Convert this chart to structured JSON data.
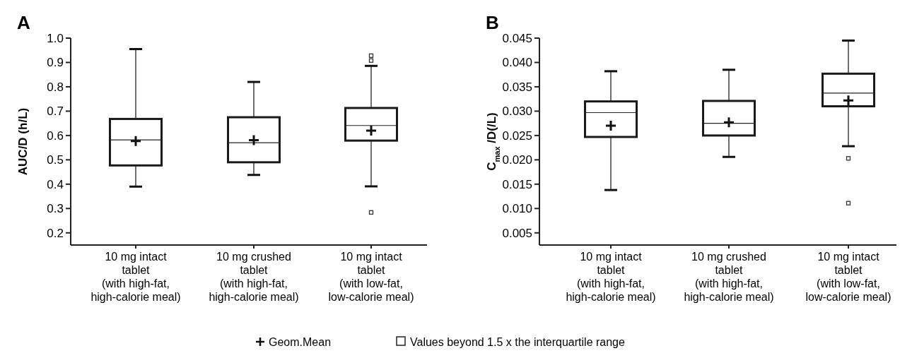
{
  "chart_data": [
    {
      "type": "box",
      "title": "A",
      "ylabel": "AUC/D (h/L)",
      "categories": [
        "10 mg intact\ntablet\n(with high-fat,\nhigh-calorie meal)",
        "10 mg crushed\ntablet\n(with high-fat,\nhigh-calorie meal)",
        "10 mg intact\ntablet\n(with low-fat,\nlow-calorie meal)"
      ],
      "boxes": [
        {
          "low": 0.39,
          "q1": 0.477,
          "median": 0.582,
          "q3": 0.668,
          "high": 0.955,
          "mean": 0.577
        },
        {
          "low": 0.438,
          "q1": 0.49,
          "median": 0.57,
          "q3": 0.675,
          "high": 0.82,
          "mean": 0.581
        },
        {
          "low": 0.391,
          "q1": 0.579,
          "median": 0.641,
          "q3": 0.713,
          "high": 0.886,
          "mean": 0.62,
          "outliers": [
            0.928,
            0.908,
            0.284
          ]
        }
      ],
      "ylim": [
        0.15,
        1.0
      ],
      "yticks": [
        0.2,
        0.3,
        0.4,
        0.5,
        0.6,
        0.7,
        0.8,
        0.9,
        {
          "value": 1.0,
          "label": "1.0"
        }
      ]
    },
    {
      "type": "box",
      "title": "B",
      "ylabel": "C$_{max}$ /D(/L)",
      "categories": [
        "10 mg intact\ntablet\n(with high-fat,\nhigh-calorie meal)",
        "10 mg crushed\ntablet\n(with high-fat,\nhigh-calorie meal)",
        "10 mg intact\ntablet\n(with low-fat,\nlow-calorie meal)"
      ],
      "boxes": [
        {
          "low": 0.0138,
          "q1": 0.0247,
          "median": 0.0297,
          "q3": 0.032,
          "high": 0.0382,
          "mean": 0.027
        },
        {
          "low": 0.0206,
          "q1": 0.025,
          "median": 0.0275,
          "q3": 0.0321,
          "high": 0.0385,
          "mean": 0.0277
        },
        {
          "low": 0.0228,
          "q1": 0.031,
          "median": 0.0337,
          "q3": 0.0377,
          "high": 0.0445,
          "mean": 0.0322,
          "outliers": [
            0.0203,
            0.0111
          ]
        }
      ],
      "ylim": [
        0.0025,
        0.045
      ],
      "yticks": [
        0.005,
        {
          "value": 0.01,
          "label": "0.010"
        },
        0.015,
        {
          "value": 0.02,
          "label": "0.020"
        },
        0.025,
        {
          "value": 0.03,
          "label": "0.030"
        },
        0.035,
        {
          "value": 0.04,
          "label": "0.040"
        },
        0.045
      ],
      "annotations": [
        "Geom.Mean",
        "Values beyond 1.5 x the interquartile range"
      ]
    }
  ]
}
